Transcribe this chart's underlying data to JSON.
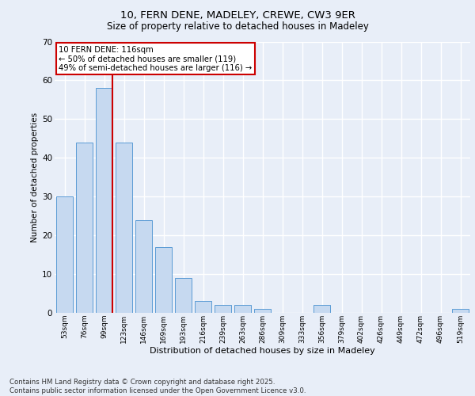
{
  "title1": "10, FERN DENE, MADELEY, CREWE, CW3 9ER",
  "title2": "Size of property relative to detached houses in Madeley",
  "xlabel": "Distribution of detached houses by size in Madeley",
  "ylabel": "Number of detached properties",
  "categories": [
    "53sqm",
    "76sqm",
    "99sqm",
    "123sqm",
    "146sqm",
    "169sqm",
    "193sqm",
    "216sqm",
    "239sqm",
    "263sqm",
    "286sqm",
    "309sqm",
    "333sqm",
    "356sqm",
    "379sqm",
    "402sqm",
    "426sqm",
    "449sqm",
    "472sqm",
    "496sqm",
    "519sqm"
  ],
  "values": [
    30,
    44,
    58,
    44,
    24,
    17,
    9,
    3,
    2,
    2,
    1,
    0,
    0,
    2,
    0,
    0,
    0,
    0,
    0,
    0,
    1
  ],
  "bar_color": "#c6d9f0",
  "bar_edge_color": "#5b9bd5",
  "redline_index": 2,
  "annotation_text": "10 FERN DENE: 116sqm\n← 50% of detached houses are smaller (119)\n49% of semi-detached houses are larger (116) →",
  "annotation_box_color": "#ffffff",
  "annotation_box_edge": "#cc0000",
  "redline_color": "#cc0000",
  "ylim": [
    0,
    70
  ],
  "yticks": [
    0,
    10,
    20,
    30,
    40,
    50,
    60,
    70
  ],
  "footer": "Contains HM Land Registry data © Crown copyright and database right 2025.\nContains public sector information licensed under the Open Government Licence v3.0.",
  "bg_color": "#e8eef8",
  "plot_bg": "#e8eef8",
  "grid_color": "#ffffff"
}
